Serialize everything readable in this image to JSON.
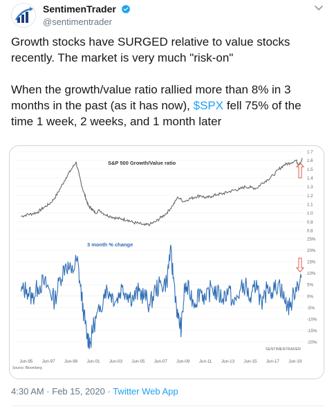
{
  "tweet": {
    "display_name": "SentimenTrader",
    "handle": "@sentimentrader",
    "text_part1": "Growth stocks have SURGED relative to value stocks recently. The market is very much \"risk-on\"\n\nWhen the growth/value ratio rallied more than 8% in 3 months in the past (as it has now), ",
    "cashtag": "$SPX",
    "text_part2": " fell 75% of the time 1 week, 2 weeks, and 1 month later",
    "timestamp": "4:30 AM · Feb 15, 2020",
    "separator": " · ",
    "app": "Twitter Web App",
    "icons": [
      "avatar-logo",
      "verified-badge-icon",
      "chevron-down-icon"
    ],
    "colors": {
      "link": "#1da1f2",
      "verified": "#1da1f2"
    }
  },
  "chart_data": [
    {
      "type": "line",
      "title": "S&P 500 Growth/Value ratio",
      "ylim": [
        0.75,
        1.75
      ],
      "y_ticks": [
        "1.7",
        "1.6",
        "1.5",
        "1.4",
        "1.3",
        "1.2",
        "1.1",
        "1.0",
        "0.9",
        "0.8"
      ],
      "color": "#666666",
      "series": [
        {
          "x": [
            1995.0,
            1995.5,
            1996.0,
            1996.5,
            1997.0,
            1997.5,
            1998.0,
            1998.5,
            1999.0,
            1999.5,
            1999.9,
            2000.2,
            2000.5,
            2000.8,
            2001.0,
            2001.3,
            2001.6,
            2002.0,
            2002.5,
            2003.0,
            2003.5,
            2004.0,
            2004.5,
            2005.0,
            2005.5,
            2006.0,
            2006.5,
            2007.0,
            2007.5,
            2008.0,
            2008.5,
            2009.0,
            2009.5,
            2010.0,
            2010.5,
            2011.0,
            2011.5,
            2012.0,
            2012.5,
            2013.0,
            2013.5,
            2014.0,
            2014.5,
            2015.0,
            2015.5,
            2016.0,
            2016.5,
            2017.0,
            2017.5,
            2018.0,
            2018.5,
            2019.0,
            2019.5,
            2019.8,
            2020.1
          ],
          "values": [
            0.96,
            0.98,
            0.99,
            1.01,
            1.06,
            1.1,
            1.17,
            1.28,
            1.4,
            1.5,
            1.58,
            1.42,
            1.27,
            1.16,
            1.08,
            1.05,
            1.0,
            1.03,
            0.98,
            0.96,
            0.94,
            0.93,
            0.92,
            0.89,
            0.88,
            0.86,
            0.87,
            0.9,
            0.95,
            1.0,
            1.08,
            1.18,
            1.13,
            1.16,
            1.18,
            1.2,
            1.17,
            1.19,
            1.21,
            1.22,
            1.24,
            1.26,
            1.27,
            1.3,
            1.29,
            1.28,
            1.34,
            1.38,
            1.43,
            1.5,
            1.55,
            1.57,
            1.6,
            1.55,
            1.62
          ]
        }
      ]
    },
    {
      "type": "line",
      "title": "3 month % change",
      "ylim": [
        -22,
        22
      ],
      "y_ticks": [
        "25%",
        "20%",
        "15%",
        "10%",
        "5%",
        "0%",
        "-5%",
        "-10%",
        "-15%",
        "-20%"
      ],
      "color": "#2e6db4",
      "x_ticks": [
        "Jun-95",
        "Jun-97",
        "Jun-99",
        "Jun-01",
        "Jun-03",
        "Jun-05",
        "Jun-07",
        "Jun-09",
        "Jun-11",
        "Jun-13",
        "Jun-15",
        "Jun-17",
        "Jun-19"
      ],
      "series": [
        {
          "x": [
            1995.0,
            1995.5,
            1996.0,
            1996.5,
            1997.0,
            1997.5,
            1998.0,
            1998.5,
            1999.0,
            1999.5,
            2000.0,
            2000.3,
            2000.6,
            2000.9,
            2001.2,
            2001.5,
            2002.0,
            2002.5,
            2003.0,
            2003.5,
            2004.0,
            2004.5,
            2005.0,
            2005.5,
            2006.0,
            2006.5,
            2007.0,
            2007.5,
            2008.0,
            2008.3,
            2008.6,
            2009.0,
            2009.3,
            2009.6,
            2010.0,
            2010.5,
            2011.0,
            2011.5,
            2012.0,
            2012.5,
            2013.0,
            2013.5,
            2014.0,
            2014.5,
            2015.0,
            2015.5,
            2016.0,
            2016.5,
            2017.0,
            2017.5,
            2018.0,
            2018.5,
            2019.0,
            2019.5,
            2020.0
          ],
          "values": [
            2,
            3,
            -1,
            4,
            6,
            3,
            -2,
            8,
            14,
            10,
            16,
            4,
            -8,
            -18,
            -20,
            -12,
            -7,
            3,
            1,
            -2,
            4,
            1,
            -1,
            2,
            0,
            -4,
            3,
            5,
            6,
            20,
            8,
            -10,
            -14,
            4,
            2,
            -3,
            3,
            -2,
            4,
            1,
            -1,
            3,
            -4,
            2,
            5,
            -3,
            7,
            -6,
            5,
            2,
            6,
            -2,
            -5,
            4,
            8
          ]
        }
      ]
    }
  ],
  "chart_labels": {
    "watermark": "SENTIMENTRADER",
    "source": "Source: Bloomberg"
  }
}
